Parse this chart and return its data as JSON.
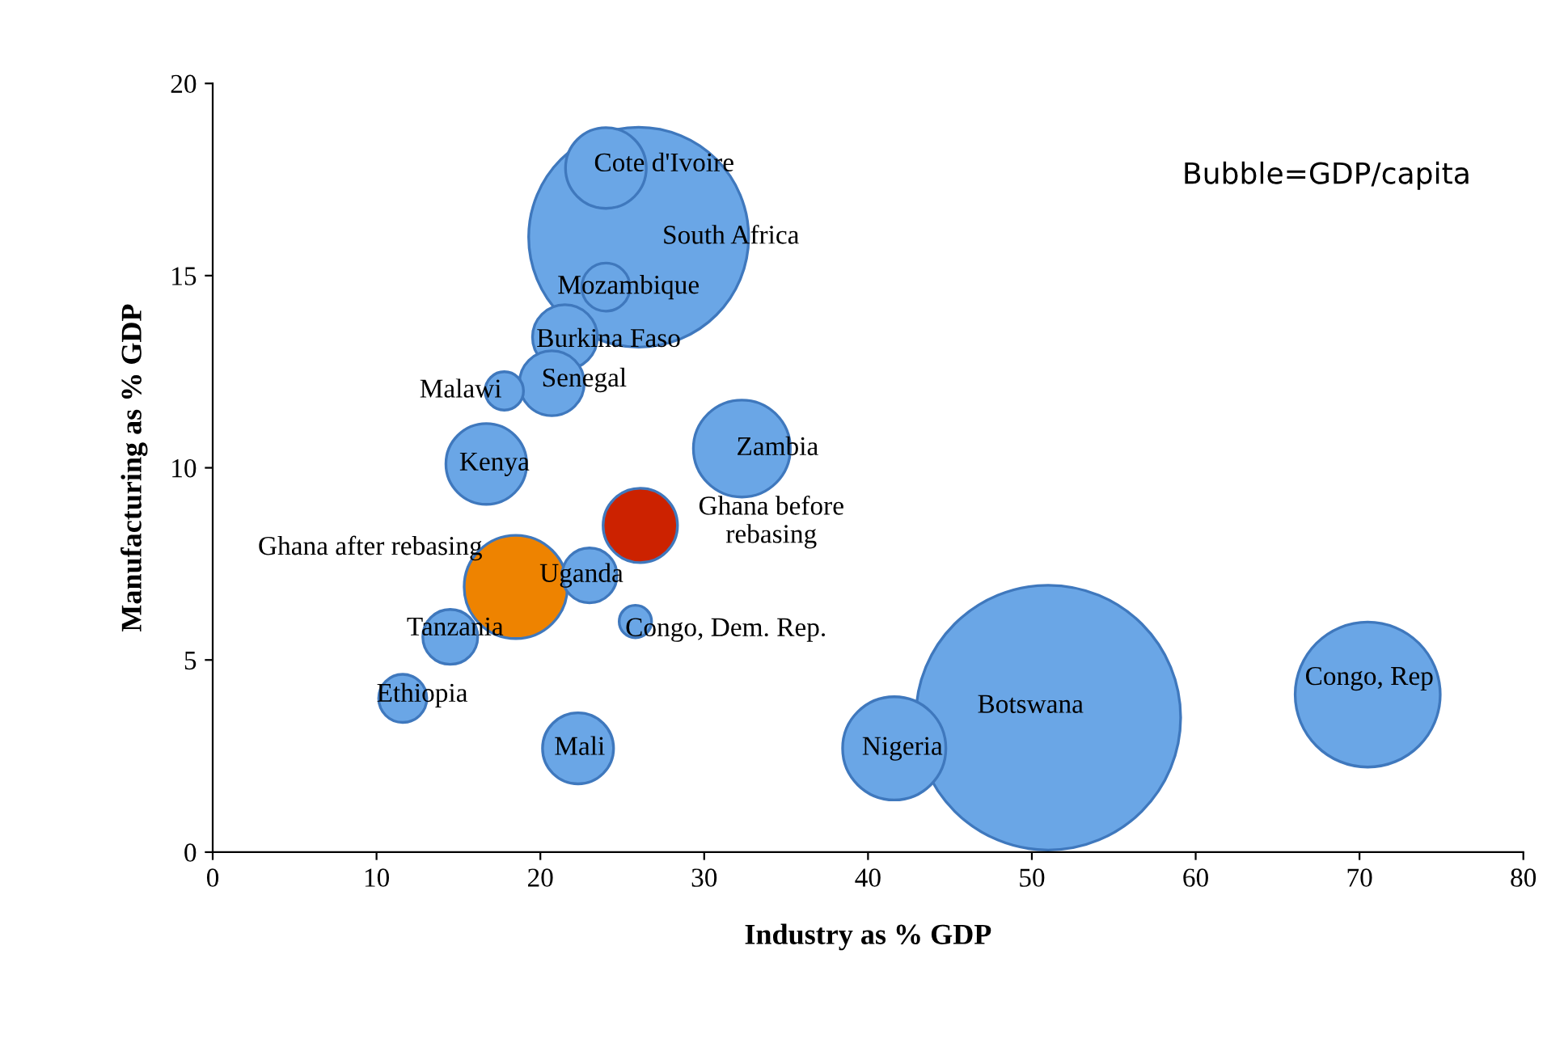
{
  "chart_data": {
    "type": "bubble",
    "xlabel": "Industry as % GDP",
    "ylabel": "Manufacturing as % GDP",
    "x": [
      51.0,
      26.0,
      70.5,
      41.6,
      32.3,
      18.5,
      16.7,
      24.0,
      22.3,
      21.5,
      20.7,
      26.1,
      23.0,
      14.5,
      17.8,
      11.6,
      24.0,
      25.8
    ],
    "values": [
      3.5,
      16.0,
      4.1,
      2.7,
      10.5,
      6.9,
      10.1,
      17.8,
      2.7,
      13.4,
      12.2,
      8.5,
      7.2,
      5.6,
      12.0,
      4.0,
      14.7,
      6.0
    ],
    "sizes": [
      1,
      0.69,
      0.3,
      0.152,
      0.134,
      0.152,
      0.093,
      0.093,
      0.072,
      0.06,
      0.06,
      0.079,
      0.043,
      0.043,
      0.021,
      0.033,
      0.033,
      0.015
    ],
    "colors": [
      "#6aa6e6",
      "#6aa6e6",
      "#6aa6e6",
      "#6aa6e6",
      "#6aa6e6",
      "#ee8300",
      "#6aa6e6",
      "#6aa6e6",
      "#6aa6e6",
      "#6aa6e6",
      "#6aa6e6",
      "#cc2200",
      "#6aa6e6",
      "#6aa6e6",
      "#6aa6e6",
      "#6aa6e6",
      "#6aa6e6",
      "#6aa6e6"
    ],
    "xlim": [
      0,
      80
    ],
    "xticks": [
      0,
      10,
      20,
      30,
      40,
      50,
      60,
      70,
      80
    ],
    "ylim": [
      0,
      20
    ],
    "yticks": [
      0,
      5,
      10,
      15,
      20
    ],
    "grid": false,
    "legend": false,
    "annotations": [
      {
        "text": "Botswana",
        "x": 51.0,
        "y": 3.5
      },
      {
        "text": "South Africa",
        "x": 26.0,
        "y": 16.0
      },
      {
        "text": "Congo, Rep",
        "x": 70.5,
        "y": 4.1
      },
      {
        "text": "Nigeria",
        "x": 41.6,
        "y": 2.7
      },
      {
        "text": "Zambia",
        "x": 32.3,
        "y": 10.5
      },
      {
        "text": "Ghana after rebasing",
        "x": 18.5,
        "y": 6.9
      },
      {
        "text": "Kenya",
        "x": 16.7,
        "y": 10.1
      },
      {
        "text": "Cote d'Ivoire",
        "x": 24.0,
        "y": 17.8
      },
      {
        "text": "Mali",
        "x": 22.3,
        "y": 2.7
      },
      {
        "text": "Burkina Faso",
        "x": 21.5,
        "y": 13.4
      },
      {
        "text": "Senegal",
        "x": 20.7,
        "y": 12.2
      },
      {
        "text": "Ghana before\nrebasing",
        "x": 26.1,
        "y": 8.5
      },
      {
        "text": "Uganda",
        "x": 23.0,
        "y": 7.2
      },
      {
        "text": "Tanzania",
        "x": 14.5,
        "y": 5.6
      },
      {
        "text": "Malawi",
        "x": 17.8,
        "y": 12.0
      },
      {
        "text": "Ethiopia",
        "x": 11.6,
        "y": 4.0
      },
      {
        "text": "Mozambique",
        "x": 24.0,
        "y": 14.7
      },
      {
        "text": "Congo, Dem. Rep.",
        "x": 25.8,
        "y": 6.0
      },
      "Bubble=GDP/capita"
    ]
  }
}
